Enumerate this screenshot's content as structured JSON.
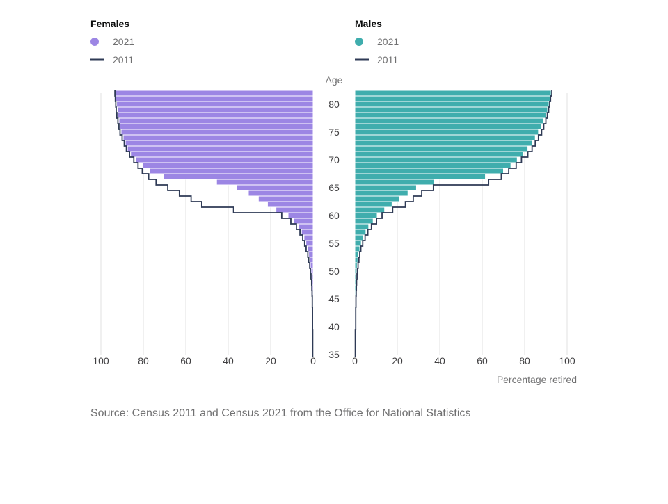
{
  "legend": {
    "females": {
      "title": "Females",
      "items": [
        {
          "label": "2021",
          "kind": "dot"
        },
        {
          "label": "2011",
          "kind": "line"
        }
      ]
    },
    "males": {
      "title": "Males",
      "items": [
        {
          "label": "2021",
          "kind": "dot"
        },
        {
          "label": "2011",
          "kind": "line"
        }
      ]
    }
  },
  "axis": {
    "age_title": "Age",
    "x_title": "Percentage retired",
    "age_ticks": [
      "80",
      "75",
      "70",
      "65",
      "60",
      "55",
      "50",
      "45",
      "40",
      "35"
    ],
    "x_ticks_left": [
      "100",
      "80",
      "60",
      "40",
      "20",
      "0"
    ],
    "x_ticks_right": [
      "0",
      "20",
      "40",
      "60",
      "80",
      "100"
    ]
  },
  "source": "Source: Census 2011 and Census 2021 from the Office for National Statistics",
  "colors": {
    "female_2021": "#9c86e4",
    "male_2021": "#3fadad",
    "line_2011": "#2e3a55",
    "grid": "#e0e0e0",
    "bar_edge": "#ffffff"
  },
  "chart_data": {
    "type": "bar",
    "orientation": "horizontal",
    "title": "",
    "x_label": "Percentage retired",
    "y_label": "Age",
    "x_range": [
      0,
      100
    ],
    "grid": true,
    "ages": [
      35,
      36,
      37,
      38,
      39,
      40,
      41,
      42,
      43,
      44,
      45,
      46,
      47,
      48,
      49,
      50,
      51,
      52,
      53,
      54,
      55,
      56,
      57,
      58,
      59,
      60,
      61,
      62,
      63,
      64,
      65,
      66,
      67,
      68,
      69,
      70,
      71,
      72,
      73,
      74,
      75,
      76,
      77,
      78,
      79,
      80,
      81,
      82
    ],
    "series": [
      {
        "name": "2021",
        "group": "Females",
        "values": [
          0.1,
          0.1,
          0.1,
          0.1,
          0.1,
          0.2,
          0.2,
          0.2,
          0.2,
          0.3,
          0.3,
          0.4,
          0.5,
          0.6,
          0.8,
          1.0,
          1.3,
          1.7,
          2.1,
          2.7,
          3.4,
          4.3,
          5.5,
          7.0,
          9.2,
          11.8,
          17.5,
          21.5,
          25.8,
          30.5,
          36.0,
          45.5,
          70.5,
          77.0,
          80.5,
          83.5,
          86.0,
          87.5,
          88.5,
          89.5,
          90.5,
          91.0,
          91.5,
          92.0,
          92.3,
          92.6,
          93.0,
          93.2
        ]
      },
      {
        "name": "2011",
        "group": "Females",
        "values": [
          0.2,
          0.2,
          0.2,
          0.2,
          0.2,
          0.3,
          0.3,
          0.3,
          0.3,
          0.4,
          0.4,
          0.5,
          0.6,
          0.7,
          1.0,
          1.3,
          1.6,
          2.1,
          2.5,
          3.3,
          4.0,
          4.9,
          6.2,
          7.9,
          10.5,
          14.8,
          37.5,
          52.5,
          57.5,
          63.0,
          68.5,
          74.0,
          77.5,
          80.5,
          82.5,
          84.5,
          86.5,
          88.0,
          89.0,
          90.0,
          91.0,
          91.5,
          92.0,
          92.5,
          92.8,
          93.0,
          93.2,
          93.4
        ]
      },
      {
        "name": "2021",
        "group": "Males",
        "values": [
          0.1,
          0.1,
          0.1,
          0.1,
          0.1,
          0.2,
          0.2,
          0.2,
          0.3,
          0.3,
          0.3,
          0.4,
          0.5,
          0.6,
          0.8,
          0.9,
          1.1,
          1.4,
          1.8,
          2.3,
          3.0,
          4.0,
          5.2,
          6.5,
          8.6,
          10.5,
          14.0,
          17.5,
          21.0,
          25.0,
          29.0,
          37.5,
          61.5,
          70.0,
          73.5,
          76.5,
          79.5,
          81.5,
          83.5,
          85.0,
          86.5,
          88.0,
          89.0,
          90.0,
          90.8,
          91.5,
          92.0,
          92.5
        ]
      },
      {
        "name": "2011",
        "group": "Males",
        "values": [
          0.2,
          0.2,
          0.2,
          0.2,
          0.2,
          0.4,
          0.4,
          0.4,
          0.4,
          0.5,
          0.5,
          0.6,
          0.7,
          0.8,
          1.0,
          1.2,
          1.5,
          1.9,
          2.3,
          2.8,
          3.7,
          4.8,
          6.1,
          7.8,
          10.2,
          12.8,
          17.8,
          23.8,
          27.5,
          31.5,
          37.0,
          63.0,
          69.0,
          72.5,
          76.0,
          78.5,
          81.5,
          83.5,
          85.0,
          86.5,
          88.0,
          89.0,
          90.0,
          90.7,
          91.3,
          91.8,
          92.2,
          92.8
        ]
      }
    ]
  }
}
